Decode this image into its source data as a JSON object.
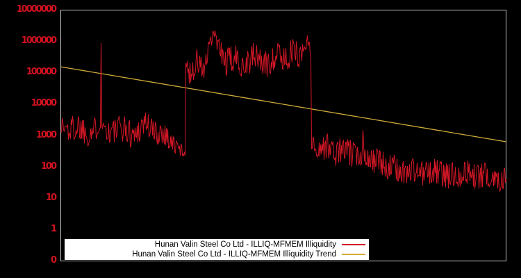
{
  "chart_data": {
    "type": "line",
    "title": "",
    "background_color": "#000000",
    "frame_color": "#c6c6c6",
    "y_axis": {
      "scale": "log10",
      "tick_labels": [
        "10000000",
        "1000000",
        "100000",
        "10000",
        "1000",
        "100",
        "10",
        "1",
        "0"
      ],
      "tick_color": "#d0121f",
      "top_log": 7,
      "bottom_log": -1
    },
    "x_axis": {
      "tick_labels": []
    },
    "series": [
      {
        "name": "Hunan Valin Steel Co Ltd - ILLIQ-MFMEM Illiquidity",
        "color": "#d41726",
        "type": "noisy-line",
        "x_domain": [
          0,
          641
        ],
        "noise_seed": 1337,
        "noise_exponent": 0.65,
        "anchors_x_log10mid_amp": [
          [
            0,
            3.35,
            0.3
          ],
          [
            10,
            3.15,
            0.42
          ],
          [
            25,
            3.3,
            0.45
          ],
          [
            40,
            3.05,
            0.42
          ],
          [
            50,
            3.2,
            0.4
          ],
          [
            57,
            3.3,
            0.1
          ],
          [
            58,
            5.95,
            0.02
          ],
          [
            59,
            3.35,
            0.1
          ],
          [
            70,
            3.05,
            0.42
          ],
          [
            90,
            3.25,
            0.45
          ],
          [
            105,
            2.95,
            0.42
          ],
          [
            122,
            3.45,
            0.4
          ],
          [
            135,
            3.05,
            0.42
          ],
          [
            148,
            3.1,
            0.38
          ],
          [
            160,
            2.75,
            0.32
          ],
          [
            170,
            2.55,
            0.24
          ],
          [
            179,
            2.48,
            0.15
          ],
          [
            180,
            5.25,
            0.1
          ],
          [
            186,
            4.95,
            0.42
          ],
          [
            196,
            5.35,
            0.42
          ],
          [
            206,
            5.05,
            0.38
          ],
          [
            215,
            5.85,
            0.3
          ],
          [
            220,
            6.28,
            0.15
          ],
          [
            227,
            5.85,
            0.32
          ],
          [
            236,
            5.3,
            0.45
          ],
          [
            250,
            5.45,
            0.45
          ],
          [
            264,
            5.25,
            0.45
          ],
          [
            280,
            5.55,
            0.45
          ],
          [
            296,
            5.2,
            0.45
          ],
          [
            310,
            5.6,
            0.42
          ],
          [
            322,
            5.4,
            0.45
          ],
          [
            335,
            5.7,
            0.4
          ],
          [
            345,
            5.5,
            0.42
          ],
          [
            352,
            5.9,
            0.3
          ],
          [
            357,
            6.05,
            0.2
          ],
          [
            360,
            5.6,
            0.15
          ],
          [
            361,
            2.75,
            0.2
          ],
          [
            370,
            2.55,
            0.38
          ],
          [
            385,
            2.65,
            0.42
          ],
          [
            395,
            2.4,
            0.4
          ],
          [
            405,
            2.55,
            0.42
          ],
          [
            420,
            2.4,
            0.42
          ],
          [
            433,
            2.28,
            0.25
          ],
          [
            435,
            3.15,
            0.05
          ],
          [
            437,
            2.35,
            0.25
          ],
          [
            450,
            2.2,
            0.42
          ],
          [
            465,
            2.05,
            0.42
          ],
          [
            480,
            1.95,
            0.42
          ],
          [
            495,
            1.8,
            0.38
          ],
          [
            510,
            1.9,
            0.42
          ],
          [
            525,
            1.75,
            0.42
          ],
          [
            540,
            1.85,
            0.42
          ],
          [
            555,
            1.7,
            0.42
          ],
          [
            570,
            1.75,
            0.42
          ],
          [
            585,
            1.82,
            0.4
          ],
          [
            600,
            1.65,
            0.42
          ],
          [
            615,
            1.75,
            0.4
          ],
          [
            630,
            1.58,
            0.4
          ],
          [
            641,
            1.7,
            0.35
          ]
        ]
      },
      {
        "name": "Hunan Valin Steel Co Ltd - ILLIQ-MFMEM Illiquidity Trend",
        "color": "#d2ac3a",
        "type": "straight-line",
        "points_x_log10": [
          [
            0,
            5.18
          ],
          [
            641,
            2.79
          ]
        ]
      }
    ],
    "legend": {
      "position": "bottom-center",
      "background": "#ffffff",
      "text_color": "#000000",
      "entries": [
        {
          "label": "Hunan Valin Steel Co Ltd - ILLIQ-MFMEM Illiquidity",
          "color": "#d41726"
        },
        {
          "label": "Hunan Valin Steel Co Ltd - ILLIQ-MFMEM Illiquidity Trend",
          "color": "#d2ac3a"
        }
      ]
    }
  }
}
